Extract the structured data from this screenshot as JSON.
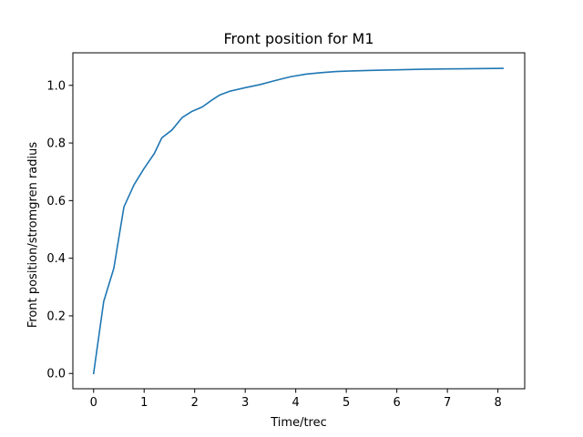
{
  "chart_data": {
    "type": "line",
    "title": "Front position for M1",
    "xlabel": "Time/trec",
    "ylabel": "Front position/stromgren radius",
    "xlim": [
      -0.41,
      8.53
    ],
    "ylim": [
      -0.053,
      1.113
    ],
    "x_ticks": [
      0,
      1,
      2,
      3,
      4,
      5,
      6,
      7,
      8
    ],
    "y_ticks": [
      0.0,
      0.2,
      0.4,
      0.6,
      0.8,
      1.0
    ],
    "y_tick_labels": [
      "0.0",
      "0.2",
      "0.4",
      "0.6",
      "0.8",
      "1.0"
    ],
    "grid": false,
    "series": [
      {
        "color": "#1f77b4",
        "x": [
          0.0,
          0.2,
          0.4,
          0.6,
          0.8,
          1.0,
          1.2,
          1.35,
          1.55,
          1.75,
          1.95,
          2.15,
          2.35,
          2.5,
          2.7,
          3.0,
          3.3,
          3.6,
          3.9,
          4.2,
          4.5,
          4.8,
          5.1,
          5.5,
          6.0,
          6.5,
          7.0,
          7.5,
          8.1
        ],
        "y": [
          0.0,
          0.25,
          0.365,
          0.578,
          0.655,
          0.712,
          0.763,
          0.818,
          0.845,
          0.888,
          0.91,
          0.925,
          0.95,
          0.967,
          0.98,
          0.992,
          1.003,
          1.017,
          1.03,
          1.039,
          1.044,
          1.048,
          1.05,
          1.052,
          1.054,
          1.056,
          1.057,
          1.058,
          1.059
        ]
      }
    ]
  }
}
